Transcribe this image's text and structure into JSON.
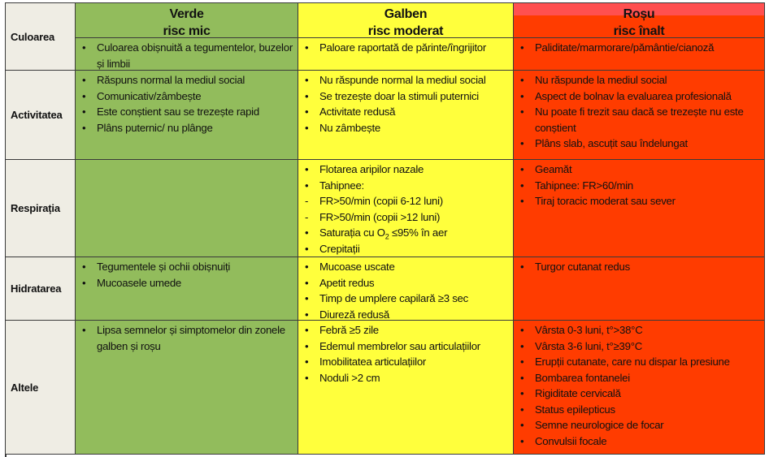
{
  "headers": [
    {
      "title": "Verde",
      "subtitle": "risc mic",
      "color": "#92bc5c"
    },
    {
      "title": "Galben",
      "subtitle": "risc moderat",
      "color": "#ffff3c"
    },
    {
      "title": "Roșu",
      "subtitle": "risc înalt",
      "color": "#ff3c00"
    }
  ],
  "rows": [
    {
      "label": "Culoarea",
      "cells": [
        [
          {
            "m": "•",
            "t": "Culoarea obișnuită a tegumentelor, buzelor și limbii"
          }
        ],
        [
          {
            "m": "•",
            "t": "Paloare raportată de părinte/îngrijitor"
          }
        ],
        [
          {
            "m": "•",
            "t": "Paliditate/marmorare/pământie/cianoză"
          }
        ]
      ]
    },
    {
      "label": "Activitatea",
      "cells": [
        [
          {
            "m": "•",
            "t": "Răspuns normal la mediul social"
          },
          {
            "m": "•",
            "t": "Comunicativ/zâmbește"
          },
          {
            "m": "•",
            "t": "Este conștient sau se trezește rapid"
          },
          {
            "m": "•",
            "t": "Plâns puternic/ nu plânge"
          }
        ],
        [
          {
            "m": "•",
            "t": "Nu răspunde normal la mediul social"
          },
          {
            "m": "•",
            "t": "Se trezește doar la stimuli puternici"
          },
          {
            "m": "•",
            "t": "Activitate redusă"
          },
          {
            "m": "•",
            "t": "Nu zâmbește"
          }
        ],
        [
          {
            "m": "•",
            "t": "Nu răspunde la mediul social"
          },
          {
            "m": "•",
            "t": "Aspect de bolnav la evaluarea profesională"
          },
          {
            "m": "•",
            "t": "Nu poate fi trezit sau dacă se trezește nu este conștient"
          },
          {
            "m": "•",
            "t": "Plâns slab, ascuțit sau îndelungat"
          }
        ]
      ]
    },
    {
      "label": "Respirația",
      "cells": [
        [],
        [
          {
            "m": "•",
            "t": "Flotarea aripilor nazale"
          },
          {
            "m": "•",
            "t": "Tahipnee:"
          },
          {
            "m": "-",
            "t": "FR>50/min (copii 6-12 luni)"
          },
          {
            "m": "-",
            "t": "FR>50/min (copii >12 luni)"
          },
          {
            "m": "•",
            "t": "Saturația cu O",
            "sub": "2",
            "after": " ≤95% în aer"
          },
          {
            "m": "•",
            "t": "Crepitații"
          }
        ],
        [
          {
            "m": "•",
            "t": "Geamăt"
          },
          {
            "m": "•",
            "t": "Tahipnee: FR>60/min"
          },
          {
            "m": "•",
            "t": "Tiraj toracic moderat sau sever"
          }
        ]
      ]
    },
    {
      "label": "Hidratarea",
      "cells": [
        [
          {
            "m": "•",
            "t": "Tegumentele și ochii obișnuiți"
          },
          {
            "m": "•",
            "t": "Mucoasele umede"
          }
        ],
        [
          {
            "m": "•",
            "t": "Mucoase uscate"
          },
          {
            "m": "•",
            "t": "Apetit redus"
          },
          {
            "m": "•",
            "t": "Timp de umplere capilară ≥3 sec"
          },
          {
            "m": "•",
            "t": "Diureză redusă"
          }
        ],
        [
          {
            "m": "•",
            "t": "Turgor cutanat redus"
          }
        ]
      ]
    },
    {
      "label": "Altele",
      "cells": [
        [
          {
            "m": "•",
            "t": "Lipsa semnelor și simptomelor din zonele galben și roșu"
          }
        ],
        [
          {
            "m": "•",
            "t": "Febră  ≥5 zile"
          },
          {
            "m": "•",
            "t": "Edemul membrelor sau articulațiilor"
          },
          {
            "m": "•",
            "t": "Imobilitatea articulațiilor"
          },
          {
            "m": "•",
            "t": "Noduli >2 cm"
          }
        ],
        [
          {
            "m": "•",
            "t": "Vârsta 0-3 luni, t°>38°C"
          },
          {
            "m": "•",
            "t": "Vârsta 3-6 luni, t°≥39°C"
          },
          {
            "m": "•",
            "t": "Erupții cutanate, care nu dispar la presiune"
          },
          {
            "m": "•",
            "t": "Bombarea fontanelei"
          },
          {
            "m": "•",
            "t": "Rigiditate cervicală"
          },
          {
            "m": "•",
            "t": "Status epilepticus"
          },
          {
            "m": "•",
            "t": "Semne neurologice de focar"
          },
          {
            "m": "•",
            "t": "Convulsii focale"
          }
        ]
      ]
    }
  ]
}
